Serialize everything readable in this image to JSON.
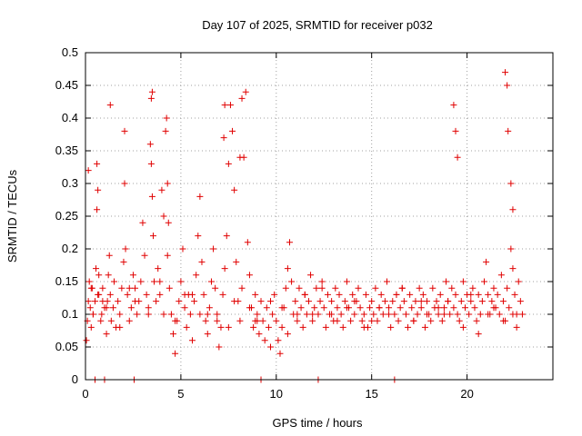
{
  "chart_data": {
    "type": "scatter",
    "title": "Day 107 of 2025, SRMTID for receiver p032",
    "xlabel": "GPS time / hours",
    "ylabel": "SRMTID / TECUs",
    "xlim": [
      0,
      24.5
    ],
    "ylim": [
      0,
      0.5
    ],
    "x_ticks": [
      0,
      5,
      10,
      15,
      20
    ],
    "x_tick_labels": [
      "0",
      "5",
      "10",
      "15",
      "20"
    ],
    "y_ticks": [
      0,
      0.05,
      0.1,
      0.15,
      0.2,
      0.25,
      0.3,
      0.35,
      0.4,
      0.45,
      0.5
    ],
    "y_tick_labels": [
      "0",
      "0.05",
      "0.1",
      "0.15",
      "0.2",
      "0.25",
      "0.3",
      "0.35",
      "0.4",
      "0.45",
      "0.5"
    ],
    "grid": true,
    "marker": "+",
    "color": "#e00000",
    "series": [
      {
        "name": "p032",
        "x": [
          0.05,
          0.1,
          0.15,
          0.2,
          0.25,
          0.3,
          0.35,
          0.4,
          0.5,
          0.55,
          0.6,
          0.65,
          0.7,
          0.8,
          0.85,
          0.9,
          1.0,
          1.1,
          1.15,
          1.2,
          1.25,
          1.3,
          1.35,
          1.45,
          1.5,
          1.6,
          1.7,
          1.8,
          1.9,
          2.0,
          2.05,
          2.1,
          2.2,
          2.3,
          2.4,
          2.5,
          2.6,
          2.7,
          2.8,
          2.9,
          3.0,
          3.1,
          3.2,
          3.3,
          3.4,
          3.45,
          3.5,
          3.55,
          3.6,
          3.7,
          3.8,
          3.9,
          4.0,
          4.1,
          4.2,
          4.25,
          4.3,
          4.4,
          4.5,
          4.6,
          4.7,
          4.8,
          4.9,
          5.0,
          5.1,
          5.2,
          5.3,
          5.4,
          5.5,
          5.6,
          5.7,
          5.8,
          5.9,
          6.0,
          6.1,
          6.2,
          6.3,
          6.4,
          6.5,
          6.6,
          6.7,
          6.8,
          6.9,
          7.0,
          7.1,
          7.2,
          7.3,
          7.4,
          7.5,
          7.6,
          7.7,
          7.8,
          7.9,
          8.0,
          8.1,
          8.2,
          8.3,
          8.4,
          8.5,
          8.6,
          8.7,
          8.8,
          8.9,
          9.0,
          9.1,
          9.2,
          9.3,
          9.4,
          9.5,
          9.6,
          9.7,
          9.8,
          9.9,
          10.0,
          10.1,
          10.2,
          10.3,
          10.4,
          10.5,
          10.6,
          10.7,
          10.8,
          10.9,
          11.0,
          11.1,
          11.2,
          11.3,
          11.4,
          11.5,
          11.6,
          11.7,
          11.8,
          11.9,
          12.0,
          12.1,
          12.2,
          12.3,
          12.4,
          12.5,
          12.6,
          12.7,
          12.8,
          12.9,
          13.0,
          13.1,
          13.2,
          13.3,
          13.4,
          13.5,
          13.6,
          13.7,
          13.8,
          13.9,
          14.0,
          14.1,
          14.2,
          14.3,
          14.4,
          14.5,
          14.6,
          14.7,
          14.8,
          14.9,
          15.0,
          15.1,
          15.2,
          15.3,
          15.4,
          15.5,
          15.6,
          15.7,
          15.8,
          15.9,
          16.0,
          16.1,
          16.2,
          16.3,
          16.4,
          16.5,
          16.6,
          16.7,
          16.8,
          16.9,
          17.0,
          17.1,
          17.2,
          17.3,
          17.4,
          17.5,
          17.6,
          17.7,
          17.8,
          17.9,
          18.0,
          18.1,
          18.2,
          18.3,
          18.4,
          18.5,
          18.6,
          18.7,
          18.8,
          18.9,
          19.0,
          19.1,
          19.2,
          19.3,
          19.4,
          19.5,
          19.6,
          19.7,
          19.8,
          19.9,
          20.0,
          20.1,
          20.2,
          20.3,
          20.4,
          20.5,
          20.6,
          20.7,
          20.8,
          20.9,
          21.0,
          21.1,
          21.2,
          21.3,
          21.4,
          21.5,
          21.6,
          21.7,
          21.8,
          21.9,
          22.0,
          22.1,
          22.2,
          22.3,
          22.4,
          22.5,
          22.6,
          22.7,
          22.8,
          22.9,
          0.15,
          0.6,
          0.65,
          1.3,
          2.05,
          3.45,
          3.5,
          4.3,
          4.35,
          7.25,
          7.3,
          8.1,
          8.2,
          19.3,
          19.4,
          19.5,
          22.0,
          22.1,
          22.15,
          22.3,
          22.4,
          0.5,
          1.0,
          2.55,
          9.2,
          12.2,
          16.2,
          0.3,
          0.7,
          1.1,
          2.6,
          3.9,
          5.2,
          6.4,
          7.8,
          9.0,
          10.3,
          11.5,
          12.9,
          14.1,
          15.4,
          16.6,
          17.9,
          19.0,
          20.2,
          21.4,
          22.6,
          0.9,
          2.3,
          4.1,
          5.6,
          6.9,
          8.6,
          9.7,
          11.1,
          12.4,
          13.7,
          15.0,
          16.3,
          17.6,
          18.8,
          20.6,
          21.9,
          0.4,
          1.8,
          3.3,
          4.7,
          6.0,
          7.5,
          8.9,
          10.6,
          11.9,
          13.2,
          14.6,
          15.9,
          17.2,
          18.5,
          19.8,
          21.1,
          22.4
        ],
        "y": [
          0.06,
          0.09,
          0.12,
          0.15,
          0.11,
          0.08,
          0.14,
          0.1,
          0.12,
          0.17,
          0.33,
          0.29,
          0.13,
          0.09,
          0.1,
          0.14,
          0.11,
          0.07,
          0.12,
          0.16,
          0.19,
          0.13,
          0.09,
          0.11,
          0.15,
          0.08,
          0.12,
          0.1,
          0.14,
          0.18,
          0.3,
          0.2,
          0.13,
          0.09,
          0.11,
          0.16,
          0.14,
          0.1,
          0.12,
          0.15,
          0.24,
          0.19,
          0.13,
          0.1,
          0.36,
          0.33,
          0.28,
          0.22,
          0.15,
          0.12,
          0.17,
          0.13,
          0.29,
          0.25,
          0.38,
          0.4,
          0.19,
          0.14,
          0.1,
          0.07,
          0.04,
          0.09,
          0.12,
          0.15,
          0.2,
          0.11,
          0.08,
          0.13,
          0.1,
          0.06,
          0.12,
          0.16,
          0.22,
          0.28,
          0.18,
          0.13,
          0.09,
          0.07,
          0.11,
          0.15,
          0.2,
          0.14,
          0.1,
          0.05,
          0.08,
          0.13,
          0.17,
          0.22,
          0.33,
          0.42,
          0.38,
          0.29,
          0.18,
          0.12,
          0.09,
          0.14,
          0.34,
          0.44,
          0.21,
          0.16,
          0.11,
          0.08,
          0.13,
          0.1,
          0.07,
          0.12,
          0.09,
          0.06,
          0.11,
          0.08,
          0.05,
          0.1,
          0.13,
          0.09,
          0.06,
          0.04,
          0.08,
          0.11,
          0.14,
          0.17,
          0.21,
          0.15,
          0.1,
          0.12,
          0.09,
          0.14,
          0.11,
          0.08,
          0.13,
          0.1,
          0.12,
          0.16,
          0.09,
          0.11,
          0.14,
          0.1,
          0.12,
          0.15,
          0.11,
          0.08,
          0.13,
          0.1,
          0.12,
          0.09,
          0.14,
          0.11,
          0.13,
          0.1,
          0.08,
          0.12,
          0.15,
          0.11,
          0.09,
          0.13,
          0.1,
          0.12,
          0.14,
          0.11,
          0.09,
          0.1,
          0.13,
          0.08,
          0.11,
          0.12,
          0.1,
          0.14,
          0.09,
          0.11,
          0.13,
          0.1,
          0.12,
          0.15,
          0.11,
          0.08,
          0.12,
          0.1,
          0.13,
          0.09,
          0.11,
          0.14,
          0.12,
          0.1,
          0.08,
          0.13,
          0.11,
          0.09,
          0.12,
          0.1,
          0.14,
          0.11,
          0.13,
          0.08,
          0.12,
          0.1,
          0.09,
          0.14,
          0.11,
          0.12,
          0.1,
          0.13,
          0.09,
          0.11,
          0.15,
          0.12,
          0.1,
          0.14,
          0.11,
          0.13,
          0.1,
          0.09,
          0.12,
          0.15,
          0.11,
          0.13,
          0.1,
          0.12,
          0.14,
          0.11,
          0.09,
          0.13,
          0.1,
          0.12,
          0.15,
          0.18,
          0.13,
          0.1,
          0.12,
          0.14,
          0.11,
          0.13,
          0.1,
          0.16,
          0.12,
          0.09,
          0.14,
          0.11,
          0.2,
          0.17,
          0.13,
          0.1,
          0.15,
          0.12,
          0.1,
          0.32,
          0.26,
          0.13,
          0.42,
          0.38,
          0.43,
          0.44,
          0.3,
          0.24,
          0.37,
          0.42,
          0.34,
          0.43,
          0.42,
          0.38,
          0.34,
          0.47,
          0.45,
          0.38,
          0.3,
          0.26,
          0.0,
          0.0,
          0.0,
          0.0,
          0.0,
          0.0,
          0.14,
          0.16,
          0.11,
          0.12,
          0.15,
          0.13,
          0.1,
          0.12,
          0.09,
          0.11,
          0.13,
          0.1,
          0.12,
          0.11,
          0.14,
          0.1,
          0.12,
          0.13,
          0.11,
          0.08,
          0.12,
          0.14,
          0.1,
          0.13,
          0.09,
          0.11,
          0.12,
          0.1,
          0.14,
          0.11,
          0.09,
          0.13,
          0.12,
          0.1,
          0.07,
          0.09,
          0.1,
          0.08,
          0.11,
          0.09,
          0.1,
          0.08,
          0.09,
          0.07,
          0.1,
          0.09,
          0.08,
          0.1,
          0.09,
          0.11,
          0.08,
          0.1,
          0.1
        ]
      }
    ]
  }
}
